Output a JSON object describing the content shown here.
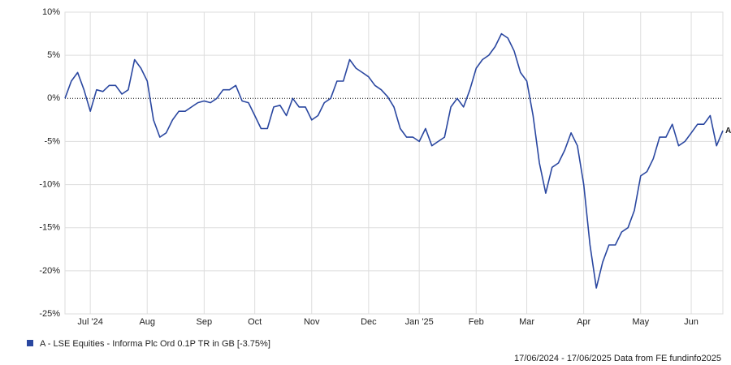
{
  "chart_data": {
    "type": "line",
    "categories": [
      null,
      null,
      null,
      null,
      "Jul '24",
      null,
      null,
      null,
      null,
      null,
      null,
      null,
      null,
      "Aug",
      null,
      null,
      null,
      null,
      null,
      null,
      null,
      null,
      "Sep",
      null,
      null,
      null,
      null,
      null,
      null,
      null,
      "Oct",
      null,
      null,
      null,
      null,
      null,
      null,
      null,
      null,
      "Nov",
      null,
      null,
      null,
      null,
      null,
      null,
      null,
      null,
      "Dec",
      null,
      null,
      null,
      null,
      null,
      null,
      null,
      "Jan '25",
      null,
      null,
      null,
      null,
      null,
      null,
      null,
      null,
      "Feb",
      null,
      null,
      null,
      null,
      null,
      null,
      null,
      "Mar",
      null,
      null,
      null,
      null,
      null,
      null,
      null,
      null,
      "Apr",
      null,
      null,
      null,
      null,
      null,
      null,
      null,
      null,
      "May",
      null,
      null,
      null,
      null,
      null,
      null,
      null,
      "Jun",
      null,
      null,
      null,
      null,
      null
    ],
    "series": [
      {
        "name": "A - LSE Equities - Informa Plc Ord 0.1P TR in GB [-3.75%]",
        "color": "#2a47a0",
        "values": [
          0,
          2,
          3,
          1,
          -1.5,
          1,
          0.8,
          1.5,
          1.5,
          0.5,
          1,
          4.5,
          3.5,
          2,
          -2.5,
          -4.5,
          -4,
          -2.5,
          -1.5,
          -1.5,
          -1,
          -0.5,
          -0.3,
          -0.5,
          0,
          1,
          1,
          1.5,
          -0.3,
          -0.5,
          -2,
          -3.5,
          -3.5,
          -1,
          -0.8,
          -2,
          0,
          -1,
          -1,
          -2.5,
          -2,
          -0.5,
          0,
          2,
          2,
          4.5,
          3.5,
          3,
          2.5,
          1.5,
          1,
          0.2,
          -1,
          -3.5,
          -4.5,
          -4.5,
          -5,
          -3.5,
          -5.5,
          -5,
          -4.5,
          -1,
          0,
          -1,
          1,
          3.5,
          4.5,
          5,
          6,
          7.5,
          7,
          5.5,
          3,
          2,
          -2,
          -7.5,
          -11,
          -8,
          -7.5,
          -6,
          -4,
          -5.5,
          -10,
          -17,
          -22,
          -19,
          -17,
          -17,
          -15.5,
          -15,
          -13,
          -9,
          -8.5,
          -7,
          -4.5,
          -4.5,
          -3,
          -5.5,
          -5,
          -4,
          -3,
          -3,
          -2,
          -5.5,
          -3.75
        ]
      }
    ],
    "end_label": "A",
    "ylim": [
      -25,
      10
    ],
    "yticks": [
      {
        "value": -25,
        "label": "-25%"
      },
      {
        "value": -20,
        "label": "-20%"
      },
      {
        "value": -15,
        "label": "-15%"
      },
      {
        "value": -10,
        "label": "-10%"
      },
      {
        "value": -5,
        "label": "-5%"
      },
      {
        "value": 0,
        "label": "0%"
      },
      {
        "value": 5,
        "label": "5%"
      },
      {
        "value": 10,
        "label": "10%"
      }
    ],
    "grid": true,
    "footer": "17/06/2024 - 17/06/2025 Data from FE fundinfo2025"
  }
}
